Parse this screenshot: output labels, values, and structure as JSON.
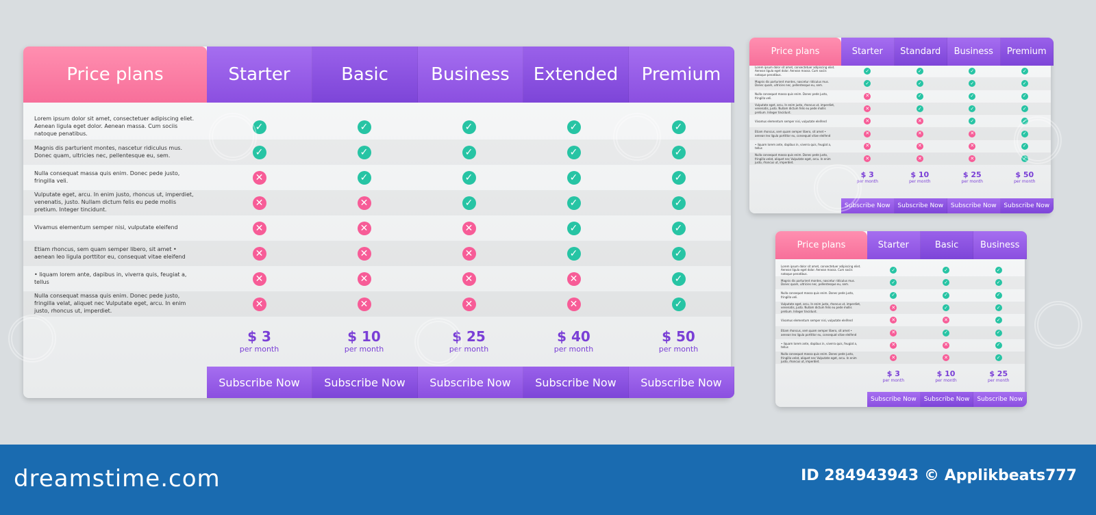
{
  "brand": "dreamstime.com",
  "credit": {
    "id": "ID 284943943",
    "author": "© Applikbeats777"
  },
  "colors": {
    "pink": "#f76f9a",
    "purple": "#8b4fe0",
    "teal": "#27c4a4",
    "background": "#d9dde0",
    "footer": "#1a6bb0"
  },
  "icons": {
    "included": "check-icon",
    "excluded": "cross-icon"
  },
  "main_table": {
    "title": "Price plans",
    "plans": [
      {
        "name": "Starter",
        "price": "$ 3",
        "period": "per month",
        "button": "Subscribe Now"
      },
      {
        "name": "Basic",
        "price": "$ 10",
        "period": "per month",
        "button": "Subscribe Now"
      },
      {
        "name": "Business",
        "price": "$ 25",
        "period": "per month",
        "button": "Subscribe Now"
      },
      {
        "name": "Extended",
        "price": "$ 40",
        "period": "per month",
        "button": "Subscribe Now"
      },
      {
        "name": "Premium",
        "price": "$ 50",
        "period": "per month",
        "button": "Subscribe Now"
      }
    ],
    "features": [
      {
        "text": "Lorem ipsum dolor sit amet, consectetuer adipiscing eliet. Aenean ligula eget dolor. Aenean massa. Cum sociis natoque penatibus.",
        "values": [
          true,
          true,
          true,
          true,
          true
        ]
      },
      {
        "text": "Magnis dis parturient montes, nascetur ridiculus mus. Donec quam, ultricies nec, pellentesque eu, sem.",
        "values": [
          true,
          true,
          true,
          true,
          true
        ]
      },
      {
        "text": "Nulla consequat massa quis enim. Donec pede justo, fringilla veli.",
        "values": [
          false,
          true,
          true,
          true,
          true
        ]
      },
      {
        "text": "Vulputate eget, arcu. In enim justo, rhoncus ut, imperdiet, venenatis, justo. Nullam dictum felis eu pede mollis pretium. Integer tincidunt.",
        "values": [
          false,
          false,
          true,
          true,
          true
        ]
      },
      {
        "text": "Vivamus elementum semper nisi, vulputate eleifend",
        "values": [
          false,
          false,
          false,
          true,
          true
        ]
      },
      {
        "text": "Etiam rhoncus, sem quam semper libero, sit amet • aenean leo ligula porttitor eu, consequat vitae eleifend",
        "values": [
          false,
          false,
          false,
          true,
          true
        ]
      },
      {
        "text": "• liquam lorem ante, dapibus in, viverra quis, feugiat a, tellus",
        "values": [
          false,
          false,
          false,
          false,
          true
        ]
      },
      {
        "text": "Nulla consequat massa quis enim. Donec pede justo, fringilla velat, aliquet nec Vulputate eget, arcu. In enim justo, rhoncus ut, imperdiet.",
        "values": [
          false,
          false,
          false,
          false,
          true
        ]
      }
    ]
  },
  "four_table": {
    "title": "Price plans",
    "plans": [
      {
        "name": "Starter",
        "price": "$ 3",
        "period": "per month",
        "button": "Subscribe Now"
      },
      {
        "name": "Standard",
        "price": "$ 10",
        "period": "per month",
        "button": "Subscribe Now"
      },
      {
        "name": "Business",
        "price": "$ 25",
        "period": "per month",
        "button": "Subscribe Now"
      },
      {
        "name": "Premium",
        "price": "$ 50",
        "period": "per month",
        "button": "Subscribe Now"
      }
    ],
    "features": [
      {
        "text": "Lorem ipsum dolor sit amet, consectetuer adipiscing eliet. Aenean ligula eget dolor. Aenean massa. Cum sociis natoque penatibus.",
        "values": [
          true,
          true,
          true,
          true
        ]
      },
      {
        "text": "Magnis dis parturient montes, nascetur ridiculus mus. Donec quam, ultricies nec, pellentesque eu, sem.",
        "values": [
          true,
          true,
          true,
          true
        ]
      },
      {
        "text": "Nulla consequat massa quis enim. Donec pede justo, fringilla veli.",
        "values": [
          false,
          true,
          true,
          true
        ]
      },
      {
        "text": "Vulputate eget, arcu. In enim justo, rhoncus ut, imperdiet, venenatis, justo. Nullam dictum felis eu pede mollis pretium. Integer tincidunt.",
        "values": [
          false,
          true,
          true,
          true
        ]
      },
      {
        "text": "Vivamus elementum semper nisi, vulputate eleifend",
        "values": [
          false,
          false,
          true,
          true
        ]
      },
      {
        "text": "Etiam rhoncus, sem quam semper libero, sit amet • aenean leo ligula porttitor eu, consequat vitae eleifend",
        "values": [
          false,
          false,
          false,
          true
        ]
      },
      {
        "text": "• liquam lorem ante, dapibus in, viverra quis, feugiat a, tellus",
        "values": [
          false,
          false,
          false,
          true
        ]
      },
      {
        "text": "Nulla consequat massa quis enim. Donec pede justo, fringilla velat, aliquet nec Vulputate eget, arcu. In enim justo, rhoncus ut, imperdiet.",
        "values": [
          false,
          false,
          false,
          true
        ]
      }
    ]
  },
  "three_table": {
    "title": "Price plans",
    "plans": [
      {
        "name": "Starter",
        "price": "$ 3",
        "period": "per month",
        "button": "Subscribe Now"
      },
      {
        "name": "Basic",
        "price": "$ 10",
        "period": "per month",
        "button": "Subscribe Now"
      },
      {
        "name": "Business",
        "price": "$ 25",
        "period": "per month",
        "button": "Subscribe Now"
      }
    ],
    "features": [
      {
        "text": "Lorem ipsum dolor sit amet, consectetuer adipiscing eliet. Aenean ligula eget dolor. Aenean massa. Cum sociis natoque penatibus.",
        "values": [
          true,
          true,
          true
        ]
      },
      {
        "text": "Magnis dis parturient montes, nascetur ridiculus mus. Donec quam, ultricies nec, pellentesque eu, sem.",
        "values": [
          true,
          true,
          true
        ]
      },
      {
        "text": "Nulla consequat massa quis enim. Donec pede justo, fringilla veli.",
        "values": [
          true,
          true,
          true
        ]
      },
      {
        "text": "Vulputate eget, arcu. In enim justo, rhoncus ut, imperdiet, venenatis, justo. Nullam dictum felis eu pede mollis pretium. Integer tincidunt.",
        "values": [
          false,
          true,
          true
        ]
      },
      {
        "text": "Vivamus elementum semper nisi, vulputate eleifend",
        "values": [
          false,
          false,
          true
        ]
      },
      {
        "text": "Etiam rhoncus, sem quam semper libero, sit amet • aenean leo ligula porttitor eu, consequat vitae eleifend",
        "values": [
          false,
          true,
          true
        ]
      },
      {
        "text": "• liquam lorem ante, dapibus in, viverra quis, feugiat a, tellus",
        "values": [
          false,
          false,
          true
        ]
      },
      {
        "text": "Nulla consequat massa quis enim. Donec pede justo, fringilla velat, aliquet nec Vulputate eget, arcu. In enim justo, rhoncus ut, imperdiet.",
        "values": [
          false,
          false,
          true
        ]
      }
    ]
  }
}
